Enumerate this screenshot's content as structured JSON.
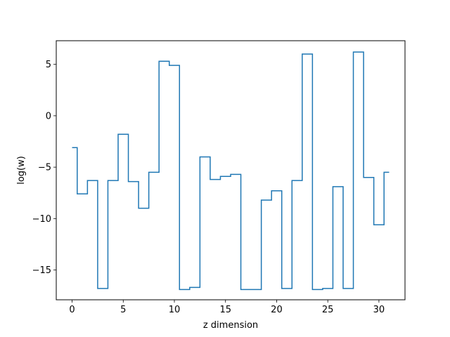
{
  "chart_data": {
    "type": "line",
    "drawstyle": "steps-mid",
    "title": "",
    "xlabel": "z dimension",
    "ylabel": "log(w)",
    "xlim": [
      -1.55,
      32.55
    ],
    "ylim": [
      -17.9,
      7.3
    ],
    "xticks": [
      0,
      5,
      10,
      15,
      20,
      25,
      30
    ],
    "yticks": [
      -15,
      -10,
      -5,
      0,
      5
    ],
    "ytick_labels": [
      "−15",
      "−10",
      "−5",
      "0",
      "5"
    ],
    "grid": false,
    "legend": "none",
    "series": [
      {
        "color": "#1f77b4",
        "x": [
          0,
          1,
          2,
          3,
          4,
          5,
          6,
          7,
          8,
          9,
          10,
          11,
          12,
          13,
          14,
          15,
          16,
          17,
          18,
          19,
          20,
          21,
          22,
          23,
          24,
          25,
          26,
          27,
          28,
          29,
          30,
          31
        ],
        "y": [
          -3.1,
          -7.6,
          -6.3,
          -16.8,
          -6.3,
          -1.8,
          -6.4,
          -9.0,
          -5.5,
          5.3,
          4.9,
          -16.9,
          -16.7,
          -4.0,
          -6.2,
          -5.9,
          -5.7,
          -16.9,
          -16.9,
          -8.2,
          -7.3,
          -16.8,
          -6.3,
          6.0,
          -16.9,
          -16.8,
          -6.9,
          -16.8,
          6.2,
          -6.0,
          -10.6,
          -5.5
        ]
      }
    ]
  }
}
